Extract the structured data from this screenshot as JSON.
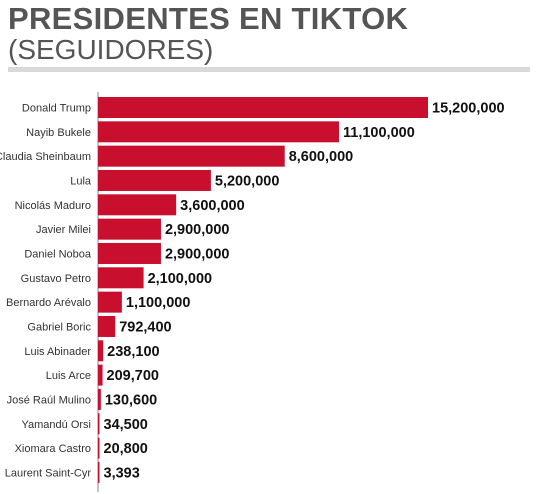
{
  "title": "PRESIDENTES EN TIKTOK",
  "subtitle": "(SEGUIDORES)",
  "colors": {
    "bar": "#c8102e",
    "axis": "#888888"
  },
  "chart_data": {
    "type": "bar",
    "orientation": "horizontal",
    "categories": [
      "Donald Trump",
      "Nayib Bukele",
      "Claudia Sheinbaum",
      "Lula",
      "Nicolás Maduro",
      "Javier Milei",
      "Daniel Noboa",
      "Gustavo Petro",
      "Bernardo Arévalo",
      "Gabriel Boric",
      "Luis Abinader",
      "Luis Arce",
      "José Raúl Mulino",
      "Yamandú Orsi",
      "Xiomara Castro",
      "Laurent Saint-Cyr"
    ],
    "values": [
      15200000,
      11100000,
      8600000,
      5200000,
      3600000,
      2900000,
      2900000,
      2100000,
      1100000,
      792400,
      238100,
      209700,
      130600,
      34500,
      20800,
      3393
    ],
    "value_labels": [
      "15,200,000",
      "11,100,000",
      "8,600,000",
      "5,200,000",
      "3,600,000",
      "2,900,000",
      "2,900,000",
      "2,100,000",
      "1,100,000",
      "792,400",
      "238,100",
      "209,700",
      "130,600",
      "34,500",
      "20,800",
      "3,393"
    ],
    "xlim": [
      0,
      15200000
    ],
    "grid": false,
    "legend": "none"
  }
}
